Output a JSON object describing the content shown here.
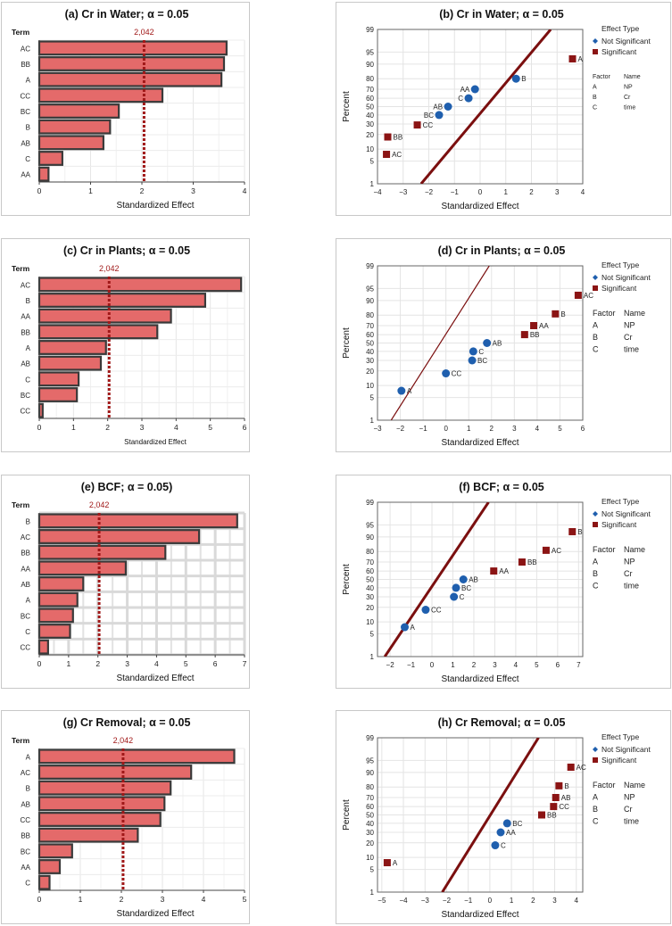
{
  "figure": {
    "factor_table": {
      "factor_header": "Factor",
      "name_header": "Name",
      "rows": [
        [
          "A",
          "NP"
        ],
        [
          "B",
          "Cr"
        ],
        [
          "C",
          "time"
        ]
      ]
    },
    "legend": {
      "title": "Effect Type",
      "not_significant": "Not Significant",
      "significant": "Significant"
    },
    "colors": {
      "bar_fill": "#e46a6a",
      "bar_stroke": "#3a3a3a",
      "ref_line": "#a01818",
      "significant": "#8b1414",
      "not_significant": "#1f5fae",
      "fit_line": "#7b0f0f"
    }
  },
  "chart_data": [
    {
      "id": "a",
      "type": "bar",
      "title": "(a) Cr in Water; α = 0.05",
      "xlabel": "Standardized Effect",
      "ylabel": "Term",
      "categories": [
        "AC",
        "BB",
        "A",
        "CC",
        "BC",
        "B",
        "AB",
        "C",
        "AA"
      ],
      "values": [
        3.65,
        3.6,
        3.55,
        2.4,
        1.55,
        1.38,
        1.25,
        0.45,
        0.18
      ],
      "reference": 2.042,
      "reference_label": "2,042",
      "xlim": [
        0,
        4
      ],
      "xticks": [
        0,
        1,
        2,
        3,
        4
      ]
    },
    {
      "id": "b",
      "type": "scatter",
      "title": "(b) Cr in Water; α = 0.05",
      "xlabel": "Standardized Effect",
      "ylabel": "Percent",
      "xlim": [
        -4,
        4
      ],
      "xticks": [
        -4,
        -3,
        -2,
        -1,
        0,
        1,
        2,
        3,
        4
      ],
      "yticks": [
        1,
        5,
        10,
        20,
        30,
        40,
        50,
        60,
        70,
        80,
        90,
        95,
        99
      ],
      "fit_line": {
        "x_at_1": -2.3,
        "x_at_99": 2.75
      },
      "points": [
        {
          "label": "A",
          "x": 3.6,
          "y": 92.5,
          "significant": true
        },
        {
          "label": "B",
          "x": 1.4,
          "y": 80,
          "significant": false
        },
        {
          "label": "AA",
          "x": -0.2,
          "y": 70,
          "significant": false
        },
        {
          "label": "C",
          "x": -0.45,
          "y": 60,
          "significant": false
        },
        {
          "label": "AB",
          "x": -1.25,
          "y": 50,
          "significant": false
        },
        {
          "label": "BC",
          "x": -1.6,
          "y": 40,
          "significant": false
        },
        {
          "label": "CC",
          "x": -2.45,
          "y": 29,
          "significant": true
        },
        {
          "label": "BB",
          "x": -3.6,
          "y": 18,
          "significant": true
        },
        {
          "label": "AC",
          "x": -3.65,
          "y": 7.5,
          "significant": true
        }
      ]
    },
    {
      "id": "c",
      "type": "bar",
      "title": "(c) Cr in Plants; α = 0.05",
      "xlabel": "Standardized Effect",
      "ylabel": "Term",
      "categories": [
        "AC",
        "B",
        "AA",
        "BB",
        "A",
        "AB",
        "C",
        "BC",
        "CC"
      ],
      "values": [
        5.9,
        4.85,
        3.85,
        3.45,
        1.95,
        1.8,
        1.15,
        1.1,
        0.1
      ],
      "reference": 2.042,
      "reference_label": "2,042",
      "xlim": [
        0,
        6
      ],
      "xticks": [
        0,
        1,
        2,
        3,
        4,
        5,
        6
      ]
    },
    {
      "id": "d",
      "type": "scatter",
      "title": "(d) Cr in Plants; α = 0.05",
      "xlabel": "Standardized Effect",
      "ylabel": "Percent",
      "xlim": [
        -3,
        6
      ],
      "xticks": [
        -3,
        -2,
        -1,
        0,
        1,
        2,
        3,
        4,
        5,
        6
      ],
      "yticks": [
        1,
        5,
        10,
        20,
        30,
        40,
        50,
        60,
        70,
        80,
        90,
        95,
        99
      ],
      "fit_line": {
        "x_at_1": -2.4,
        "x_at_99": 1.9
      },
      "points": [
        {
          "label": "AC",
          "x": 5.8,
          "y": 92.5,
          "significant": true
        },
        {
          "label": "B",
          "x": 4.8,
          "y": 81,
          "significant": true
        },
        {
          "label": "AA",
          "x": 3.85,
          "y": 70,
          "significant": true
        },
        {
          "label": "BB",
          "x": 3.45,
          "y": 60,
          "significant": true
        },
        {
          "label": "AB",
          "x": 1.8,
          "y": 50,
          "significant": false
        },
        {
          "label": "C",
          "x": 1.2,
          "y": 40,
          "significant": false
        },
        {
          "label": "BC",
          "x": 1.15,
          "y": 30,
          "significant": false
        },
        {
          "label": "CC",
          "x": 0.0,
          "y": 18,
          "significant": false
        },
        {
          "label": "A",
          "x": -1.95,
          "y": 7.5,
          "significant": false
        }
      ]
    },
    {
      "id": "e",
      "type": "bar",
      "title": "(e) BCF; α = 0.05)",
      "xlabel": "Standardized Effect",
      "ylabel": "Term",
      "categories": [
        "B",
        "AC",
        "BB",
        "AA",
        "AB",
        "A",
        "BC",
        "C",
        "CC"
      ],
      "values": [
        6.75,
        5.45,
        4.3,
        2.95,
        1.5,
        1.3,
        1.15,
        1.05,
        0.3
      ],
      "reference": 2.042,
      "reference_label": "2,042",
      "xlim": [
        0,
        7
      ],
      "xticks": [
        0,
        1,
        2,
        3,
        4,
        5,
        6,
        7
      ]
    },
    {
      "id": "f",
      "type": "scatter",
      "title": "(f) BCF; α = 0.05",
      "xlabel": "Standardized Effect",
      "ylabel": "Percent",
      "xlim": [
        -2.6,
        7.2
      ],
      "xticks": [
        -2,
        -1,
        0,
        1,
        2,
        3,
        4,
        5,
        6,
        7
      ],
      "yticks": [
        1,
        5,
        10,
        20,
        30,
        40,
        50,
        60,
        70,
        80,
        90,
        95,
        99
      ],
      "fit_line": {
        "x_at_1": -2.25,
        "x_at_99": 2.7
      },
      "points": [
        {
          "label": "B",
          "x": 6.7,
          "y": 92.5,
          "significant": true
        },
        {
          "label": "AC",
          "x": 5.45,
          "y": 81,
          "significant": true
        },
        {
          "label": "BB",
          "x": 4.3,
          "y": 70,
          "significant": true
        },
        {
          "label": "AA",
          "x": 2.95,
          "y": 60,
          "significant": true
        },
        {
          "label": "AB",
          "x": 1.5,
          "y": 50,
          "significant": false
        },
        {
          "label": "BC",
          "x": 1.15,
          "y": 40,
          "significant": false
        },
        {
          "label": "C",
          "x": 1.05,
          "y": 30,
          "significant": false
        },
        {
          "label": "CC",
          "x": -0.3,
          "y": 18,
          "significant": false
        },
        {
          "label": "A",
          "x": -1.3,
          "y": 7.5,
          "significant": false
        }
      ]
    },
    {
      "id": "g",
      "type": "bar",
      "title": "(g) Cr Removal; α = 0.05",
      "xlabel": "Standardized Effect",
      "ylabel": "Term",
      "categories": [
        "A",
        "AC",
        "B",
        "AB",
        "CC",
        "BB",
        "BC",
        "AA",
        "C"
      ],
      "values": [
        4.75,
        3.7,
        3.2,
        3.05,
        2.95,
        2.4,
        0.8,
        0.5,
        0.25
      ],
      "reference": 2.042,
      "reference_label": "2,042",
      "xlim": [
        0,
        5
      ],
      "xticks": [
        0,
        1,
        2,
        3,
        4,
        5
      ]
    },
    {
      "id": "h",
      "type": "scatter",
      "title": "(h) Cr Removal; α = 0.05",
      "xlabel": "Standardized Effect",
      "ylabel": "Percent",
      "xlim": [
        -5.2,
        4.3
      ],
      "xticks": [
        -5,
        -4,
        -3,
        -2,
        -1,
        0,
        1,
        2,
        3,
        4
      ],
      "yticks": [
        1,
        5,
        10,
        20,
        30,
        40,
        50,
        60,
        70,
        80,
        90,
        95,
        99
      ],
      "fit_line": {
        "x_at_1": -2.2,
        "x_at_99": 2.25
      },
      "points": [
        {
          "label": "AC",
          "x": 3.75,
          "y": 92.5,
          "significant": true
        },
        {
          "label": "B",
          "x": 3.2,
          "y": 81,
          "significant": true
        },
        {
          "label": "AB",
          "x": 3.05,
          "y": 70,
          "significant": true
        },
        {
          "label": "CC",
          "x": 2.95,
          "y": 60,
          "significant": true
        },
        {
          "label": "BB",
          "x": 2.4,
          "y": 50,
          "significant": true
        },
        {
          "label": "BC",
          "x": 0.8,
          "y": 40,
          "significant": false
        },
        {
          "label": "AA",
          "x": 0.5,
          "y": 30,
          "significant": false
        },
        {
          "label": "C",
          "x": 0.25,
          "y": 18,
          "significant": false
        },
        {
          "label": "A",
          "x": -4.75,
          "y": 7.5,
          "significant": true
        }
      ]
    }
  ]
}
